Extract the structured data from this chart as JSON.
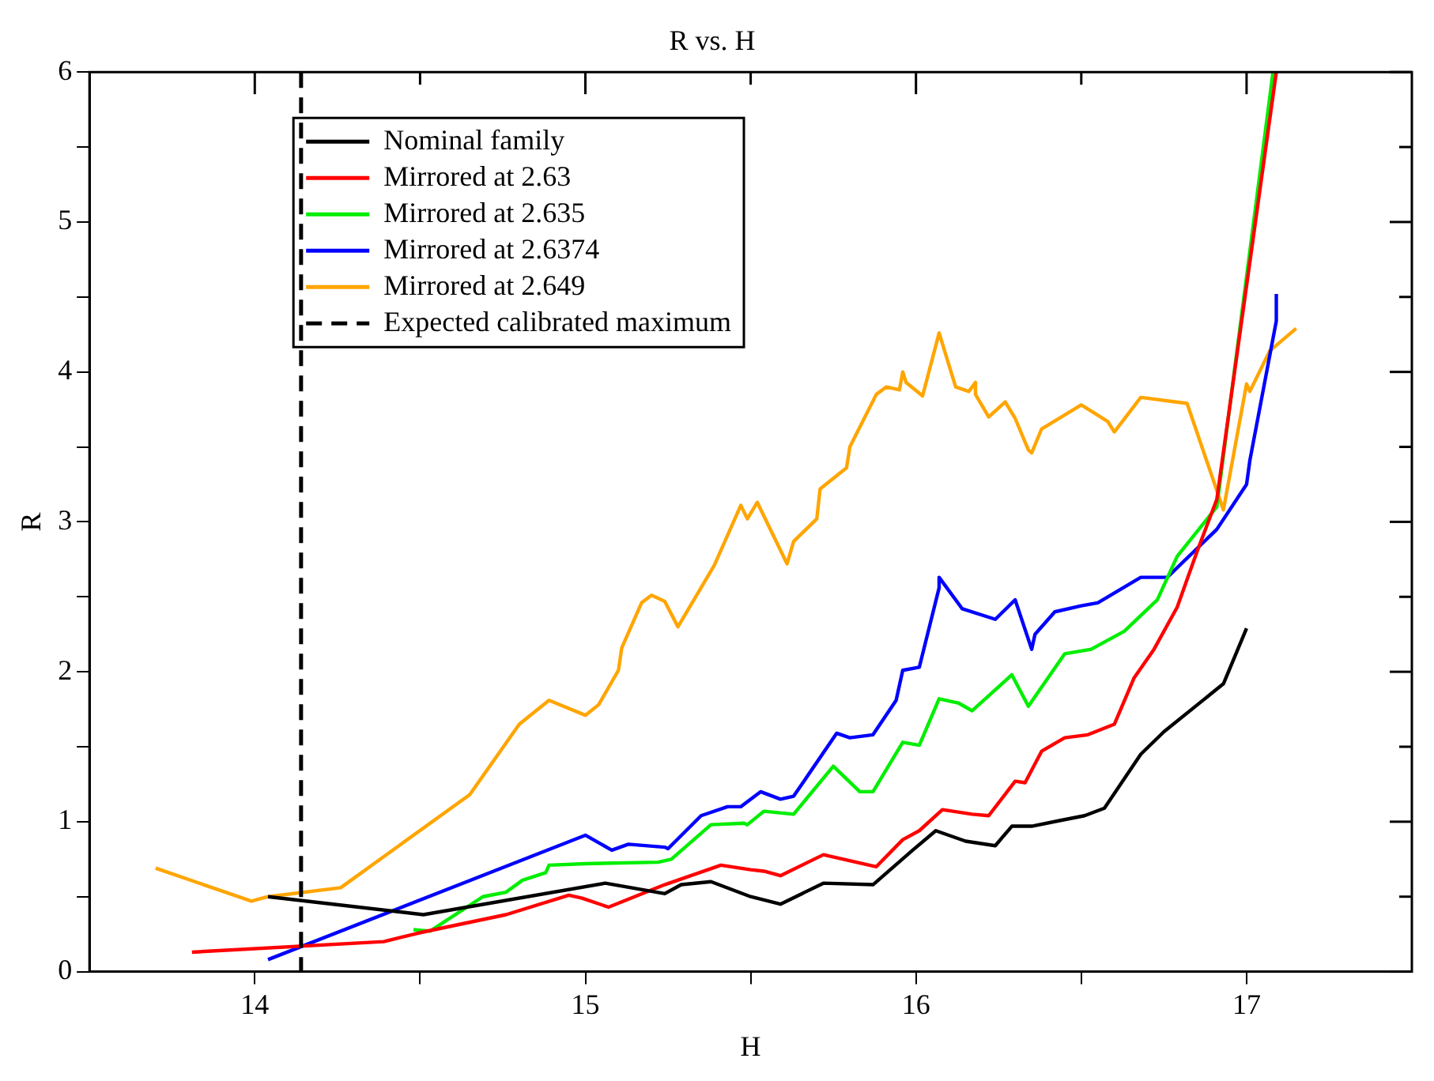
{
  "chart_data": {
    "type": "line",
    "title": "R vs. H",
    "xlabel": "H",
    "ylabel": "R",
    "xlim": [
      13.5,
      17.5
    ],
    "xticks": [
      14,
      {
        "value": 14.5,
        "label": null
      },
      15,
      {
        "value": 15.5,
        "label": null
      },
      16,
      {
        "value": 16.5,
        "label": null
      },
      17
    ],
    "ylim": [
      0,
      6
    ],
    "yticks": [
      0,
      {
        "value": 0.5,
        "label": null
      },
      1,
      {
        "value": 1.5,
        "label": null
      },
      2,
      {
        "value": 2.5,
        "label": null
      },
      3,
      {
        "value": 3.5,
        "label": null
      },
      4,
      {
        "value": 4.5,
        "label": null
      },
      5,
      {
        "value": 5.5,
        "label": null
      },
      6
    ],
    "grid": false,
    "legend": "top left",
    "marker": "none",
    "line_style": "solid",
    "ref_lines": [
      {
        "axis": "x",
        "value": 14.14,
        "label": "Expected calibrated maximum",
        "color": "#000000",
        "line_style": "dashed"
      }
    ],
    "series": [
      {
        "name": "Nominal family",
        "color": "#000000",
        "x": [
          14.04,
          14.51,
          15.06,
          15.24,
          15.29,
          15.38,
          15.5,
          15.59,
          15.72,
          15.87,
          15.99,
          16.06,
          16.15,
          16.24,
          16.29,
          16.35,
          16.44,
          16.51,
          16.57,
          16.68,
          16.75,
          16.93,
          17.0
        ],
        "values": [
          0.5,
          0.38,
          0.59,
          0.52,
          0.58,
          0.6,
          0.5,
          0.45,
          0.59,
          0.58,
          0.81,
          0.94,
          0.87,
          0.84,
          0.97,
          0.97,
          1.01,
          1.04,
          1.09,
          1.45,
          1.6,
          1.92,
          2.29
        ]
      },
      {
        "name": "Mirrored at 2.63",
        "color": "#ff0000",
        "x": [
          13.81,
          14.39,
          14.5,
          14.76,
          14.95,
          14.99,
          15.07,
          15.24,
          15.41,
          15.5,
          15.54,
          15.59,
          15.72,
          15.88,
          15.96,
          16.01,
          16.08,
          16.17,
          16.22,
          16.3,
          16.33,
          16.38,
          16.45,
          16.52,
          16.6,
          16.66,
          16.72,
          16.79,
          16.85,
          16.91,
          17.09
        ],
        "values": [
          0.13,
          0.2,
          0.26,
          0.38,
          0.51,
          0.49,
          0.43,
          0.58,
          0.71,
          0.68,
          0.67,
          0.64,
          0.78,
          0.7,
          0.88,
          0.94,
          1.08,
          1.05,
          1.04,
          1.27,
          1.26,
          1.47,
          1.56,
          1.58,
          1.65,
          1.96,
          2.15,
          2.43,
          2.8,
          3.15,
          6.0
        ]
      },
      {
        "name": "Mirrored at 2.635",
        "color": "#00ee00",
        "x": [
          14.48,
          14.53,
          14.69,
          14.76,
          14.81,
          14.88,
          14.89,
          15.0,
          15.22,
          15.26,
          15.38,
          15.48,
          15.49,
          15.54,
          15.63,
          15.75,
          15.83,
          15.87,
          15.96,
          16.01,
          16.07,
          16.13,
          16.17,
          16.29,
          16.34,
          16.45,
          16.53,
          16.63,
          16.73,
          16.79,
          16.91,
          17.08
        ],
        "values": [
          0.28,
          0.27,
          0.5,
          0.53,
          0.61,
          0.66,
          0.71,
          0.72,
          0.73,
          0.75,
          0.98,
          0.99,
          0.98,
          1.07,
          1.05,
          1.37,
          1.2,
          1.2,
          1.53,
          1.51,
          1.82,
          1.79,
          1.74,
          1.98,
          1.77,
          2.12,
          2.15,
          2.27,
          2.48,
          2.77,
          3.1,
          6.0
        ]
      },
      {
        "name": "Mirrored at 2.6374",
        "color": "#0000ff",
        "x": [
          14.04,
          15.0,
          15.08,
          15.13,
          15.24,
          15.25,
          15.35,
          15.43,
          15.47,
          15.53,
          15.59,
          15.63,
          15.76,
          15.8,
          15.87,
          15.94,
          15.96,
          16.01,
          16.07,
          16.07,
          16.14,
          16.24,
          16.3,
          16.35,
          16.36,
          16.42,
          16.5,
          16.55,
          16.68,
          16.76,
          16.91,
          17.0,
          17.01,
          17.09,
          17.09
        ],
        "values": [
          0.08,
          0.91,
          0.81,
          0.85,
          0.83,
          0.82,
          1.04,
          1.1,
          1.1,
          1.2,
          1.15,
          1.17,
          1.59,
          1.56,
          1.58,
          1.81,
          2.01,
          2.03,
          2.56,
          2.63,
          2.42,
          2.35,
          2.48,
          2.15,
          2.25,
          2.4,
          2.44,
          2.46,
          2.63,
          2.63,
          2.95,
          3.25,
          3.41,
          4.34,
          4.52
        ]
      },
      {
        "name": "Mirrored at 2.649",
        "color": "#ffa500",
        "x": [
          13.7,
          13.99,
          14.04,
          14.26,
          14.65,
          14.8,
          14.89,
          15.0,
          15.04,
          15.1,
          15.11,
          15.17,
          15.2,
          15.24,
          15.28,
          15.39,
          15.47,
          15.49,
          15.52,
          15.61,
          15.63,
          15.7,
          15.71,
          15.79,
          15.8,
          15.88,
          15.91,
          15.95,
          15.96,
          15.97,
          16.02,
          16.07,
          16.12,
          16.16,
          16.18,
          16.18,
          16.22,
          16.27,
          16.3,
          16.34,
          16.35,
          16.38,
          16.5,
          16.58,
          16.6,
          16.68,
          16.82,
          16.93,
          17.0,
          17.01,
          17.07,
          17.15
        ],
        "values": [
          0.69,
          0.47,
          0.5,
          0.56,
          1.18,
          1.65,
          1.81,
          1.71,
          1.78,
          2.01,
          2.16,
          2.46,
          2.51,
          2.47,
          2.3,
          2.71,
          3.11,
          3.02,
          3.13,
          2.72,
          2.87,
          3.02,
          3.22,
          3.36,
          3.5,
          3.85,
          3.9,
          3.88,
          4.0,
          3.93,
          3.84,
          4.26,
          3.9,
          3.87,
          3.93,
          3.85,
          3.7,
          3.8,
          3.69,
          3.48,
          3.46,
          3.62,
          3.78,
          3.67,
          3.6,
          3.83,
          3.79,
          3.08,
          3.92,
          3.87,
          4.14,
          4.29
        ]
      }
    ]
  }
}
